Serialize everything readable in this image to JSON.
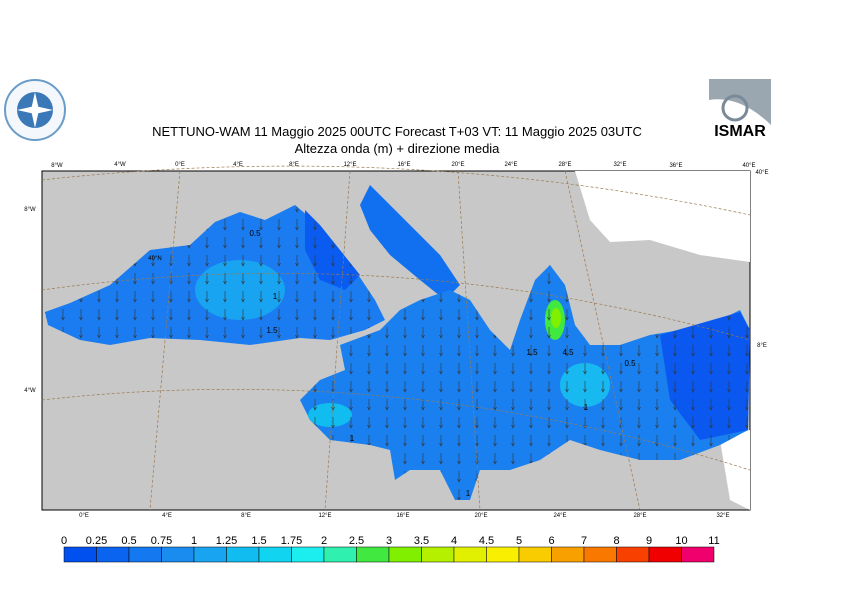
{
  "header": {
    "title": "NETTUNO-WAM  11   Maggio  2025 00UTC Forecast T+03 VT: 11   Maggio  2025 03UTC",
    "subtitle": "Altezza onda (m) + direzione media",
    "logo_right": "ISMAR"
  },
  "map": {
    "top_labels": [
      "8°W",
      "4°W",
      "0°E",
      "4°E",
      "8°E",
      "12°E",
      "16°E",
      "20°E",
      "24°E",
      "28°E",
      "32°E",
      "36°E",
      "40°E"
    ],
    "bottom_labels": [
      "0°E",
      "4°E",
      "8°E",
      "12°E",
      "16°E",
      "20°E",
      "24°E",
      "28°E",
      "32°E"
    ],
    "side_labels": [
      "8°W",
      "40°N",
      "4°W",
      "40°E",
      "8°E"
    ],
    "contour_labels": [
      "0.5",
      "1",
      "1.5",
      "1",
      "1",
      "1.5",
      "4.5",
      "0.5",
      "1"
    ]
  },
  "colorbar": {
    "labels": [
      "0",
      "0.25",
      "0.5",
      "0.75",
      "1",
      "1.25",
      "1.5",
      "1.75",
      "2",
      "2.5",
      "3",
      "3.5",
      "4",
      "4.5",
      "5",
      "6",
      "7",
      "8",
      "9",
      "10",
      "11"
    ],
    "colors": [
      "#0050f0",
      "#0a64f0",
      "#1478f0",
      "#1a8cf0",
      "#18a4f0",
      "#10bcf0",
      "#10d4f0",
      "#1ceef0",
      "#30f0b0",
      "#40e840",
      "#80f000",
      "#b4f000",
      "#e0f000",
      "#f8f000",
      "#f8cc00",
      "#f8a000",
      "#f87800",
      "#f84000",
      "#f00000",
      "#f0006c",
      "#f000c8"
    ]
  }
}
